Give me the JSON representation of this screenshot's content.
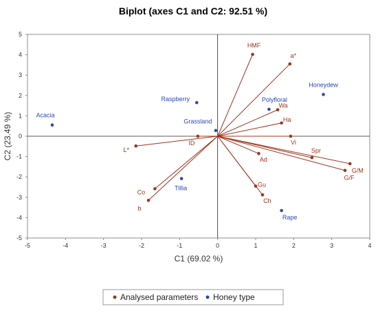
{
  "chart_data": {
    "type": "scatter",
    "title": "Biplot (axes C1 and C2: 92.51 %)",
    "xlabel": "C1 (69.02 %)",
    "ylabel": "C2 (23.49 %)",
    "xlim": [
      -5,
      4
    ],
    "ylim": [
      -5,
      5
    ],
    "xticks": [
      -5,
      -4,
      -3,
      -2,
      -1,
      0,
      1,
      2,
      3,
      4
    ],
    "yticks": [
      -5,
      -4,
      -3,
      -2,
      -1,
      0,
      1,
      2,
      3,
      4,
      5
    ],
    "grid": false,
    "legend_position": "bottom",
    "series": [
      {
        "name": "Analysed parameters",
        "color": "#a0331a",
        "points": [
          {
            "label": "HMF",
            "x": 0.92,
            "y": 4.02
          },
          {
            "label": "a*",
            "x": 1.9,
            "y": 3.55
          },
          {
            "label": "Wa",
            "x": 1.58,
            "y": 1.3
          },
          {
            "label": "Ha",
            "x": 1.68,
            "y": 0.65
          },
          {
            "label": "Vi",
            "x": 1.92,
            "y": 0.0
          },
          {
            "label": "Spr",
            "x": 2.48,
            "y": -1.05
          },
          {
            "label": "G/M",
            "x": 3.48,
            "y": -1.35
          },
          {
            "label": "G/F",
            "x": 3.35,
            "y": -1.68
          },
          {
            "label": "Ad",
            "x": 1.08,
            "y": -0.85
          },
          {
            "label": "Gu",
            "x": 1.0,
            "y": -2.45
          },
          {
            "label": "Ch",
            "x": 1.18,
            "y": -2.88
          },
          {
            "label": "ID",
            "x": -0.52,
            "y": 0.0
          },
          {
            "label": "L*",
            "x": -2.15,
            "y": -0.48
          },
          {
            "label": "Co",
            "x": -1.65,
            "y": -2.58
          },
          {
            "label": "b",
            "x": -1.82,
            "y": -3.15
          }
        ]
      },
      {
        "name": "Honey type",
        "color": "#2a46b8",
        "points": [
          {
            "label": "Honeydew",
            "x": 2.78,
            "y": 2.05
          },
          {
            "label": "Polyfloral",
            "x": 1.35,
            "y": 1.32
          },
          {
            "label": "Raspberry",
            "x": -0.55,
            "y": 1.65
          },
          {
            "label": "Grassland",
            "x": -0.05,
            "y": 0.28
          },
          {
            "label": "Acacia",
            "x": -4.35,
            "y": 0.55
          },
          {
            "label": "Tillia",
            "x": -0.95,
            "y": -2.08
          },
          {
            "label": "Rape",
            "x": 1.68,
            "y": -3.65
          }
        ]
      }
    ]
  }
}
